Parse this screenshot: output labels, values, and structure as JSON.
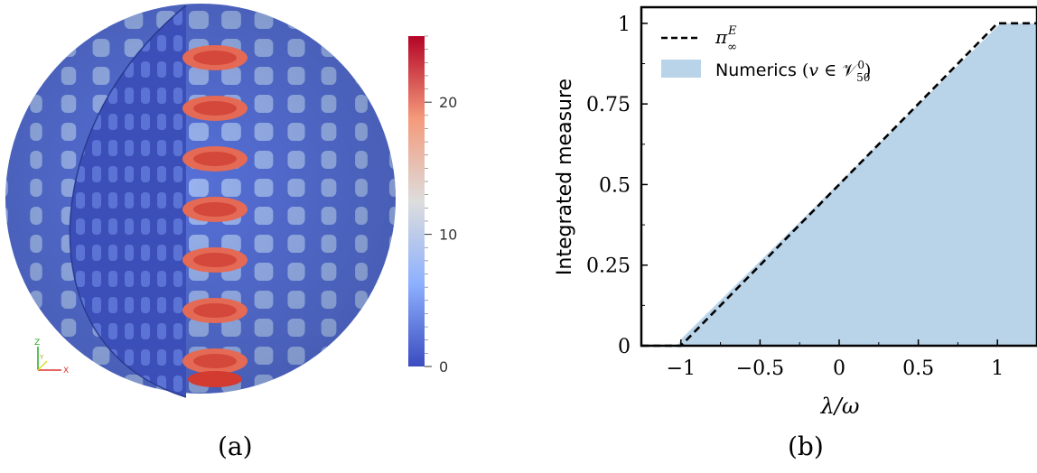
{
  "panel_a": {
    "caption": "(a)",
    "colorbar": {
      "min": 0,
      "max": 25,
      "ticks": [
        0,
        10,
        20
      ],
      "colors": [
        "#3b4cc0",
        "#8db0fe",
        "#dddddd",
        "#f49a7b",
        "#b40426"
      ]
    },
    "axes_triad": {
      "x_label": "X",
      "y_label": "Y",
      "z_label": "Z"
    }
  },
  "panel_b": {
    "caption": "(b)"
  },
  "chart_data": {
    "type": "line",
    "xlabel": "λ/ω",
    "ylabel": "Integrated measure",
    "xlim": [
      -1.25,
      1.25
    ],
    "ylim": [
      0,
      1.05
    ],
    "xticks": [
      -1,
      -0.5,
      0,
      0.5,
      1
    ],
    "xtick_labels": [
      "−1",
      "−0.5",
      "0",
      "0.5",
      "1"
    ],
    "yticks": [
      0,
      0.25,
      0.5,
      0.75,
      1
    ],
    "ytick_labels": [
      "0",
      "0.25",
      "0.5",
      "0.75",
      "1"
    ],
    "legend_position": "top-left",
    "series": [
      {
        "name": "π∞^E",
        "style": "dashed",
        "color": "#000000",
        "x": [
          -1.25,
          -1,
          1,
          1.25
        ],
        "y": [
          0,
          0,
          1,
          1
        ]
      },
      {
        "name": "Numerics (v ∈ V⁰₅₀)",
        "style": "area",
        "color": "#b9d3e8",
        "x": [
          -1.25,
          -1.02,
          -1,
          1.02,
          1.25
        ],
        "y": [
          0,
          0,
          0.02,
          1.0,
          1.0
        ]
      }
    ]
  }
}
